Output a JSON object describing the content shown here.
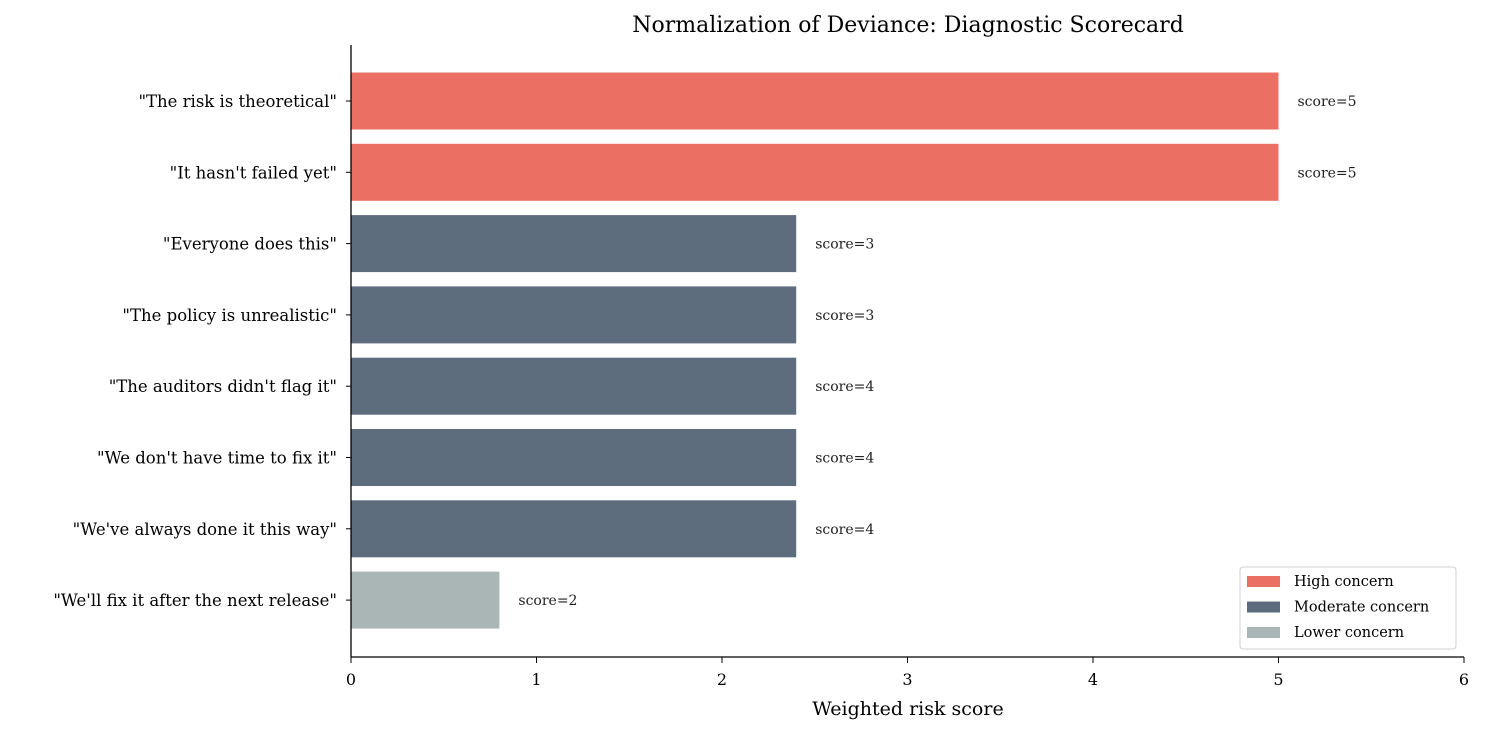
{
  "chart_data": {
    "type": "bar",
    "orientation": "horizontal",
    "title": "Normalization of Deviance: Diagnostic Scorecard",
    "xlabel": "Weighted risk score",
    "ylabel": "",
    "xlim": [
      0,
      6
    ],
    "xticks": [
      0,
      1,
      2,
      3,
      4,
      5,
      6
    ],
    "grid": false,
    "legend_position": "bottom-right",
    "bars": [
      {
        "category": "\"The risk is theoretical\"",
        "value": 5.0,
        "label": "score=5",
        "group": "high"
      },
      {
        "category": "\"It hasn't failed yet\"",
        "value": 5.0,
        "label": "score=5",
        "group": "high"
      },
      {
        "category": "\"Everyone does this\"",
        "value": 2.4,
        "label": "score=3",
        "group": "moderate"
      },
      {
        "category": "\"The policy is unrealistic\"",
        "value": 2.4,
        "label": "score=3",
        "group": "moderate"
      },
      {
        "category": "\"The auditors didn't flag it\"",
        "value": 2.4,
        "label": "score=4",
        "group": "moderate"
      },
      {
        "category": "\"We don't have time to fix it\"",
        "value": 2.4,
        "label": "score=4",
        "group": "moderate"
      },
      {
        "category": "\"We've always done it this way\"",
        "value": 2.4,
        "label": "score=4",
        "group": "moderate"
      },
      {
        "category": "\"We'll fix it after the next release\"",
        "value": 0.8,
        "label": "score=2",
        "group": "lower"
      }
    ],
    "legend": [
      {
        "key": "high",
        "label": "High concern",
        "color": "#eb6f63"
      },
      {
        "key": "moderate",
        "label": "Moderate concern",
        "color": "#5e6d7d"
      },
      {
        "key": "lower",
        "label": "Lower concern",
        "color": "#aab6b6"
      }
    ]
  }
}
